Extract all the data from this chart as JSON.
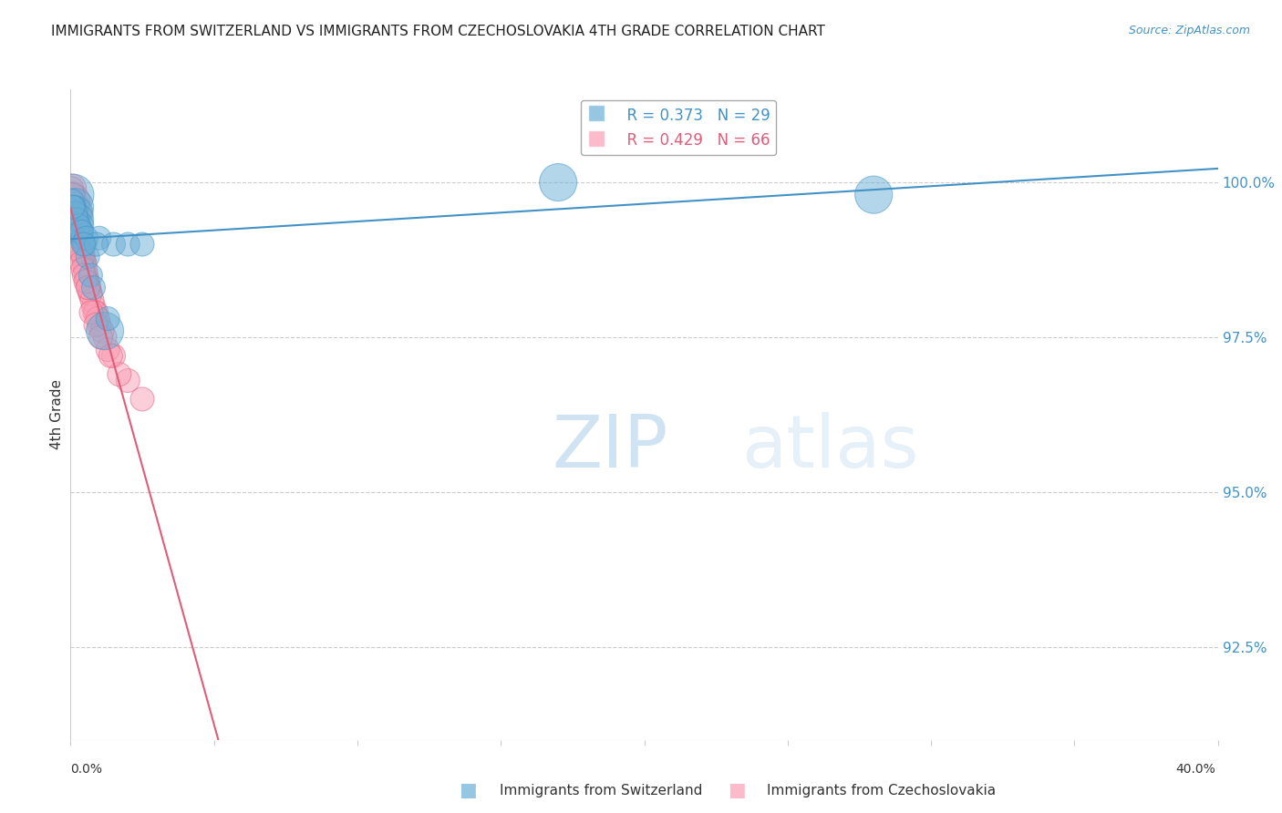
{
  "title": "IMMIGRANTS FROM SWITZERLAND VS IMMIGRANTS FROM CZECHOSLOVAKIA 4TH GRADE CORRELATION CHART",
  "source": "Source: ZipAtlas.com",
  "ylabel": "4th Grade",
  "y_ticks": [
    92.5,
    95.0,
    97.5,
    100.0
  ],
  "y_tick_labels": [
    "92.5%",
    "95.0%",
    "97.5%",
    "100.0%"
  ],
  "xlim": [
    0.0,
    40.0
  ],
  "ylim": [
    91.0,
    101.5
  ],
  "watermark_zip": "ZIP",
  "watermark_atlas": "atlas",
  "legend_blue_r": "R = 0.373",
  "legend_blue_n": "N = 29",
  "legend_pink_r": "R = 0.429",
  "legend_pink_n": "N = 66",
  "legend_label_blue": "Immigrants from Switzerland",
  "legend_label_pink": "Immigrants from Czechoslovakia",
  "blue_color": "#6baed6",
  "pink_color": "#fa9fb5",
  "trendline_blue": "#4292c6",
  "trendline_pink": "#e05c7a",
  "background": "#ffffff",
  "grid_color": "#cccccc",
  "swiss_x": [
    0.1,
    0.15,
    0.2,
    0.25,
    0.3,
    0.35,
    0.4,
    0.5,
    0.6,
    0.7,
    0.8,
    1.0,
    1.2,
    1.5,
    2.0,
    2.5,
    0.05,
    0.12,
    0.18,
    0.22,
    0.28,
    0.38,
    0.55,
    0.9,
    1.3,
    17.0,
    28.0,
    0.08,
    0.45
  ],
  "swiss_y": [
    99.8,
    99.6,
    99.5,
    99.4,
    99.3,
    99.2,
    99.1,
    99.0,
    98.8,
    98.5,
    98.3,
    99.1,
    97.6,
    99.0,
    99.0,
    99.0,
    99.7,
    99.6,
    99.5,
    99.4,
    99.3,
    99.2,
    99.1,
    99.0,
    97.8,
    100.0,
    99.8,
    99.6,
    99.0
  ],
  "swiss_size": [
    30,
    25,
    20,
    18,
    15,
    12,
    10,
    10,
    10,
    10,
    10,
    10,
    25,
    10,
    10,
    10,
    10,
    10,
    10,
    10,
    10,
    10,
    10,
    10,
    10,
    25,
    25,
    10,
    10
  ],
  "czech_x": [
    0.05,
    0.08,
    0.1,
    0.12,
    0.15,
    0.18,
    0.2,
    0.22,
    0.25,
    0.28,
    0.3,
    0.35,
    0.4,
    0.45,
    0.5,
    0.55,
    0.6,
    0.65,
    0.7,
    0.8,
    0.9,
    1.0,
    1.2,
    1.5,
    2.0,
    0.06,
    0.09,
    0.11,
    0.13,
    0.16,
    0.19,
    0.21,
    0.24,
    0.27,
    0.32,
    0.37,
    0.42,
    0.47,
    0.52,
    0.58,
    0.63,
    0.68,
    0.75,
    0.85,
    0.95,
    1.1,
    1.3,
    1.7,
    2.5,
    0.04,
    0.07,
    0.14,
    0.17,
    0.23,
    0.26,
    0.29,
    0.33,
    0.38,
    0.43,
    0.48,
    0.53,
    0.6,
    0.72,
    0.88,
    1.05,
    1.4
  ],
  "czech_y": [
    99.9,
    99.8,
    99.7,
    99.7,
    99.6,
    99.5,
    99.4,
    99.4,
    99.3,
    99.2,
    99.1,
    99.0,
    98.9,
    98.8,
    98.7,
    98.5,
    98.4,
    98.3,
    98.2,
    98.0,
    97.9,
    97.7,
    97.5,
    97.2,
    96.8,
    99.8,
    99.7,
    99.6,
    99.6,
    99.5,
    99.4,
    99.3,
    99.2,
    99.1,
    99.0,
    98.9,
    98.8,
    98.7,
    98.6,
    98.4,
    98.3,
    98.2,
    98.1,
    97.9,
    97.8,
    97.6,
    97.3,
    96.9,
    96.5,
    99.9,
    99.8,
    99.6,
    99.5,
    99.3,
    99.2,
    99.1,
    98.9,
    98.7,
    98.6,
    98.5,
    98.4,
    98.3,
    97.9,
    97.7,
    97.5,
    97.2
  ],
  "czech_size": [
    15,
    12,
    20,
    10,
    15,
    18,
    12,
    10,
    12,
    15,
    10,
    12,
    10,
    10,
    10,
    10,
    10,
    10,
    10,
    10,
    10,
    10,
    10,
    10,
    10,
    10,
    10,
    10,
    10,
    10,
    10,
    10,
    10,
    10,
    10,
    10,
    10,
    10,
    10,
    10,
    10,
    10,
    10,
    10,
    10,
    10,
    10,
    10,
    10,
    10,
    10,
    10,
    10,
    10,
    10,
    10,
    10,
    10,
    10,
    10,
    10,
    10,
    10,
    10,
    10,
    10
  ]
}
